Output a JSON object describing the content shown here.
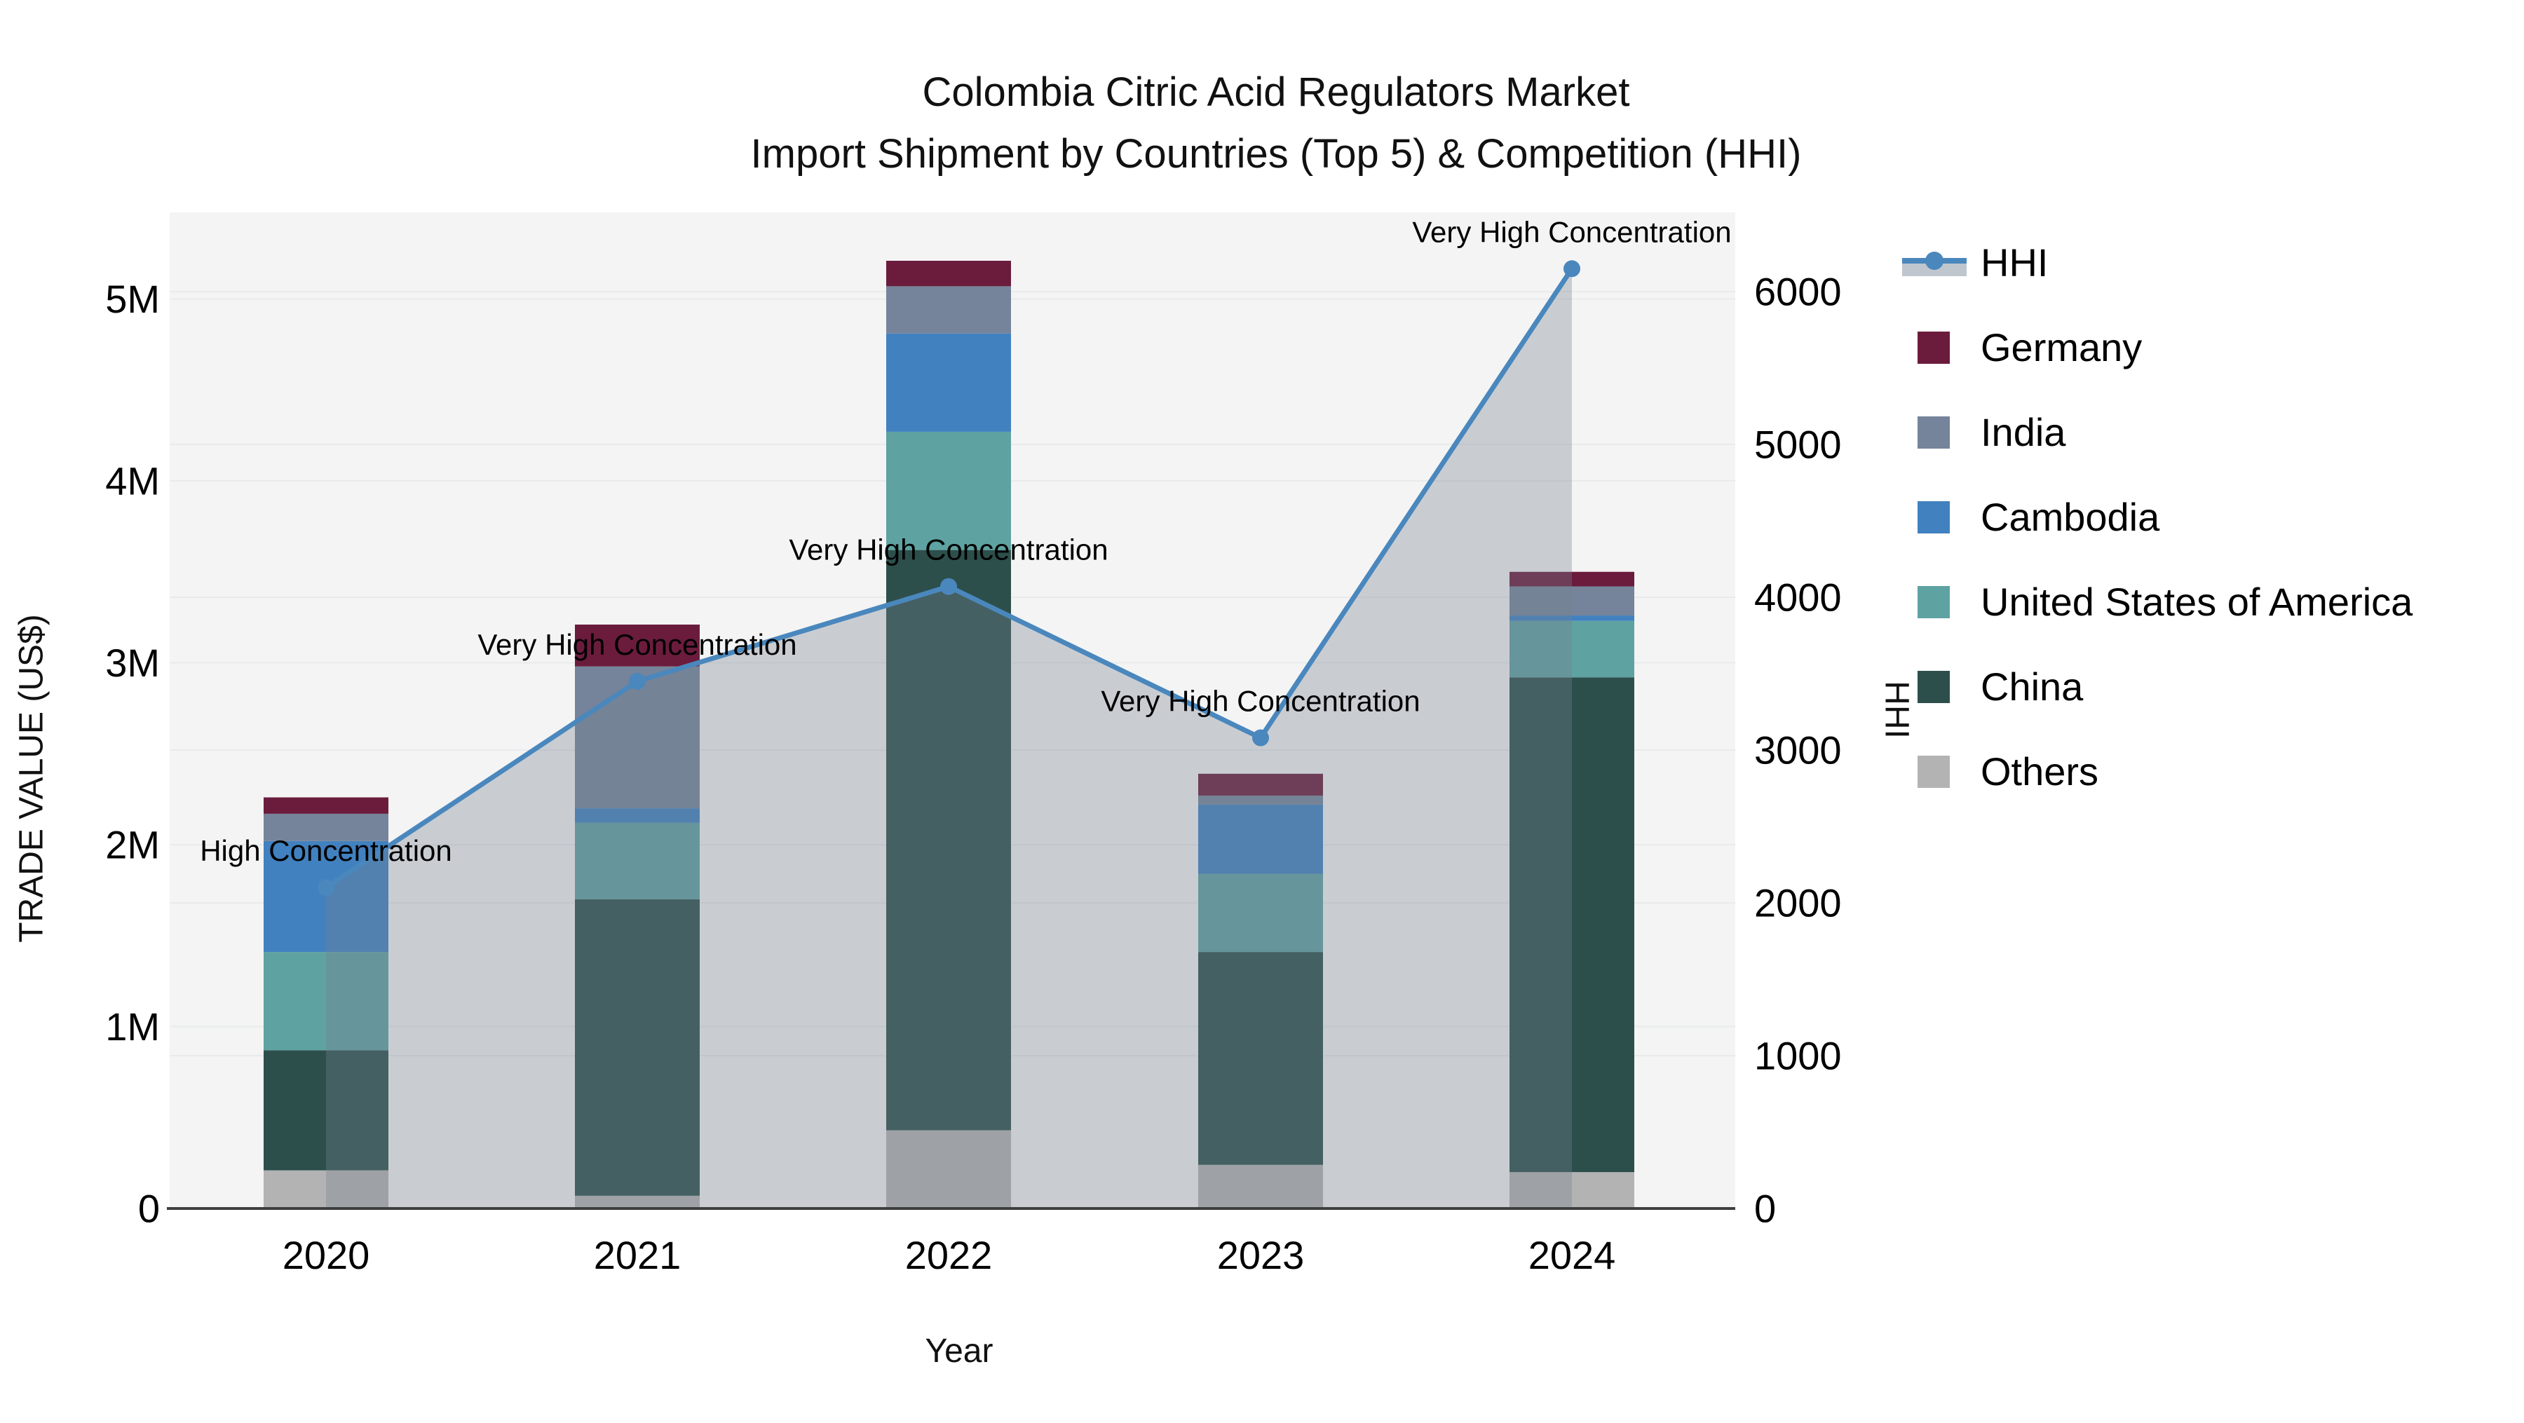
{
  "title": {
    "line1": "Colombia Citric Acid Regulators Market",
    "line2": "Import Shipment by Countries (Top 5) & Competition (HHI)"
  },
  "axes": {
    "x_title": "Year",
    "y_left_title": "TRADE VALUE (US$)",
    "y_right_title": "HHI",
    "x_ticks": [
      "2020",
      "2021",
      "2022",
      "2023",
      "2024"
    ],
    "y_left_ticks": [
      "0",
      "1M",
      "2M",
      "3M",
      "4M",
      "5M"
    ],
    "y_right_ticks": [
      "0",
      "1000",
      "2000",
      "3000",
      "4000",
      "5000",
      "6000"
    ]
  },
  "legend": {
    "items": [
      {
        "label": "HHI",
        "type": "line",
        "color": "#4a87bd"
      },
      {
        "label": "Germany",
        "type": "square",
        "color": "#6b1c3d"
      },
      {
        "label": "India",
        "type": "square",
        "color": "#75849a"
      },
      {
        "label": "Cambodia",
        "type": "square",
        "color": "#4181c0"
      },
      {
        "label": "United States of America",
        "type": "square",
        "color": "#5fa2a2"
      },
      {
        "label": "China",
        "type": "square",
        "color": "#2d4f4c"
      },
      {
        "label": "Others",
        "type": "square",
        "color": "#b3b3b3"
      }
    ]
  },
  "chart_data": {
    "type": "bar",
    "stacked": true,
    "title": "Colombia Citric Acid Regulators Market Import Shipment by Countries (Top 5) & Competition (HHI)",
    "xlabel": "Year",
    "ylabel_left": "TRADE VALUE (US$)",
    "ylabel_right": "HHI",
    "categories": [
      "2020",
      "2021",
      "2022",
      "2023",
      "2024"
    ],
    "value_unit": "US$ millions",
    "series": [
      {
        "name": "Others",
        "color": "#b3b3b3",
        "values": [
          0.21,
          0.07,
          0.43,
          0.24,
          0.2
        ]
      },
      {
        "name": "China",
        "color": "#2d4f4c",
        "values": [
          0.66,
          1.63,
          3.19,
          1.17,
          2.72
        ]
      },
      {
        "name": "United States of America",
        "color": "#5fa2a2",
        "values": [
          0.54,
          0.42,
          0.65,
          0.43,
          0.31
        ]
      },
      {
        "name": "Cambodia",
        "color": "#4181c0",
        "values": [
          0.61,
          0.08,
          0.54,
          0.38,
          0.03
        ]
      },
      {
        "name": "India",
        "color": "#75849a",
        "values": [
          0.15,
          0.78,
          0.26,
          0.05,
          0.16
        ]
      },
      {
        "name": "Germany",
        "color": "#6b1c3d",
        "values": [
          0.09,
          0.23,
          0.14,
          0.12,
          0.08
        ]
      }
    ],
    "bar_totals": [
      2.26,
      3.21,
      5.21,
      2.39,
      3.5
    ],
    "line": {
      "name": "HHI",
      "axis": "right",
      "color": "#4a87bd",
      "area_fill": "rgba(116,128,145,0.34)",
      "values": [
        2100,
        3450,
        4070,
        3080,
        6150
      ]
    },
    "annotations": [
      {
        "x": "2020",
        "text": "High Concentration"
      },
      {
        "x": "2021",
        "text": "Very High Concentration"
      },
      {
        "x": "2022",
        "text": "Very High Concentration"
      },
      {
        "x": "2023",
        "text": "Very High Concentration"
      },
      {
        "x": "2024",
        "text": "Very High Concentration"
      }
    ],
    "ylim_left": [
      0,
      5500000
    ],
    "ylim_right": [
      0,
      6520
    ],
    "grid": true,
    "legend_position": "right"
  },
  "colors": {
    "plot_bg": "#f4f4f4",
    "grid": "#e9eaec",
    "axis_line": "#3f3f3f",
    "text": "#000000"
  }
}
